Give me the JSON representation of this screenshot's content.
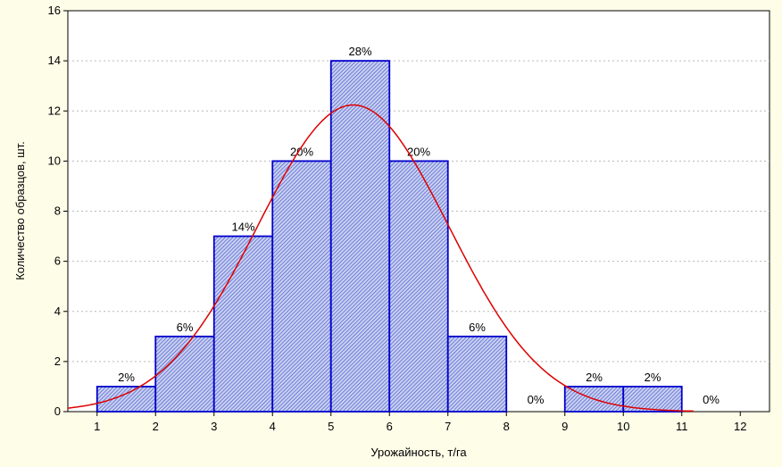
{
  "chart_data": {
    "type": "bar",
    "subtype": "histogram",
    "xlabel": "Урожайность, т/га",
    "ylabel": "Количество образцов, шт.",
    "xlim": [
      0.5,
      12.5
    ],
    "ylim": [
      0,
      16
    ],
    "x_ticks": [
      "1",
      "2",
      "3",
      "4",
      "5",
      "6",
      "7",
      "8",
      "9",
      "10",
      "11",
      "12"
    ],
    "y_ticks": [
      "0",
      "2",
      "4",
      "6",
      "8",
      "10",
      "12",
      "14",
      "16"
    ],
    "bins": [
      {
        "start": 1,
        "end": 2,
        "count": 1,
        "label": "2%"
      },
      {
        "start": 2,
        "end": 3,
        "count": 3,
        "label": "6%"
      },
      {
        "start": 3,
        "end": 4,
        "count": 7,
        "label": "14%"
      },
      {
        "start": 4,
        "end": 5,
        "count": 10,
        "label": "20%"
      },
      {
        "start": 5,
        "end": 6,
        "count": 14,
        "label": "28%"
      },
      {
        "start": 6,
        "end": 7,
        "count": 10,
        "label": "20%"
      },
      {
        "start": 7,
        "end": 8,
        "count": 3,
        "label": "6%"
      },
      {
        "start": 8,
        "end": 9,
        "count": 0,
        "label": "0%"
      },
      {
        "start": 9,
        "end": 10,
        "count": 1,
        "label": "2%"
      },
      {
        "start": 10,
        "end": 11,
        "count": 1,
        "label": "2%"
      },
      {
        "start": 11,
        "end": 12,
        "count": 0,
        "label": "0%"
      }
    ],
    "normal_fit": {
      "mean": 5.38,
      "sd": 1.63,
      "n": 50,
      "bin_width": 1
    },
    "grid": true,
    "colors": {
      "bar_fill": "#c8cff0",
      "bar_hatch": "#3a4dc8",
      "bar_edge": "#0000cc",
      "curve": "#dd0000",
      "background": "#fdfde8"
    }
  }
}
